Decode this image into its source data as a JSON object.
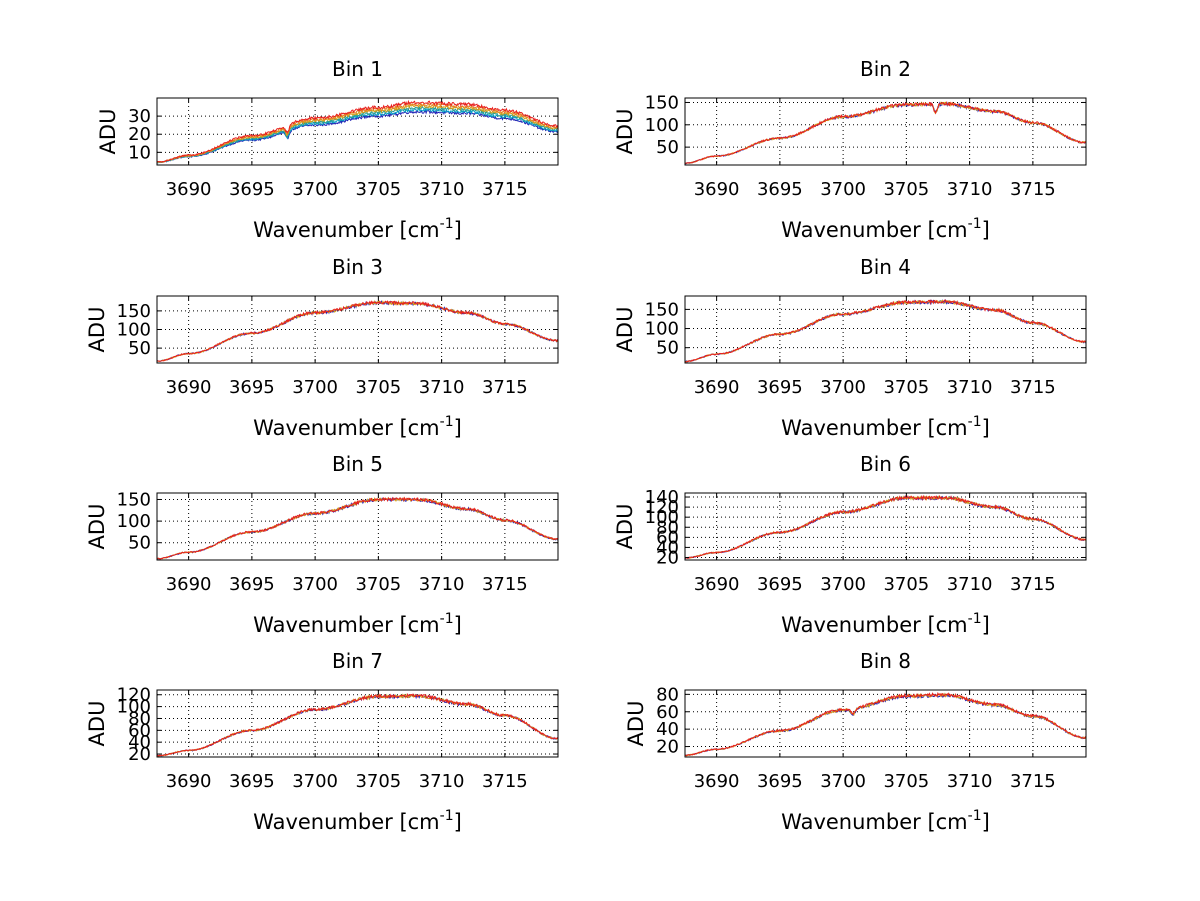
{
  "colors": {
    "background": "#ffffff",
    "axes": "#000000",
    "grid": "#000000",
    "series": [
      "#1f1fb4",
      "#00a0c8",
      "#2a9d8f",
      "#d4a017",
      "#e67e22",
      "#e8201e"
    ]
  },
  "chart_data": [
    {
      "type": "line",
      "title": "Bin 1",
      "xlabel": "Wavenumber [cm",
      "xlabel_sup": "-1",
      "xlabel_close": "]",
      "ylabel": "ADU",
      "xlim": [
        3687.5,
        3719.2
      ],
      "ylim": [
        3,
        40
      ],
      "xticks": [
        3690,
        3695,
        3700,
        3705,
        3710,
        3715
      ],
      "yticks": [
        10,
        20,
        30
      ],
      "grid": true,
      "profile": {
        "x": [
          3687.5,
          3690,
          3695,
          3700,
          3705,
          3708,
          3712,
          3715,
          3719.2
        ],
        "y": [
          4.5,
          8,
          18,
          27,
          32.5,
          35,
          34,
          31,
          23
        ]
      },
      "dip": {
        "x": 3697.8,
        "depth": 4
      },
      "series_offsets": [
        -2.5,
        -1.5,
        -0.5,
        0.5,
        1.5,
        2.5
      ]
    },
    {
      "type": "line",
      "title": "Bin 2",
      "xlabel": "Wavenumber [cm",
      "xlabel_sup": "-1",
      "xlabel_close": "]",
      "ylabel": "ADU",
      "xlim": [
        3687.5,
        3719.2
      ],
      "ylim": [
        10,
        160
      ],
      "xticks": [
        3690,
        3695,
        3700,
        3705,
        3710,
        3715
      ],
      "yticks": [
        50,
        100,
        150
      ],
      "grid": true,
      "profile": {
        "x": [
          3687.5,
          3690,
          3695,
          3700,
          3705,
          3708,
          3712,
          3715,
          3719.2
        ],
        "y": [
          14,
          30,
          70,
          118,
          145,
          147,
          130,
          105,
          60
        ]
      },
      "dip": {
        "x": 3707.3,
        "depth": 18
      },
      "series_offsets": [
        -1,
        0,
        1
      ]
    },
    {
      "type": "line",
      "title": "Bin 3",
      "xlabel": "Wavenumber [cm",
      "xlabel_sup": "-1",
      "xlabel_close": "]",
      "ylabel": "ADU",
      "xlim": [
        3687.5,
        3719.2
      ],
      "ylim": [
        10,
        190
      ],
      "xticks": [
        3690,
        3695,
        3700,
        3705,
        3710,
        3715
      ],
      "yticks": [
        50,
        100,
        150
      ],
      "grid": true,
      "profile": {
        "x": [
          3687.5,
          3690,
          3695,
          3700,
          3705,
          3708,
          3712,
          3715,
          3719.2
        ],
        "y": [
          15,
          35,
          90,
          145,
          172,
          170,
          145,
          115,
          70
        ]
      },
      "dip": null,
      "series_offsets": [
        -1,
        0,
        1
      ]
    },
    {
      "type": "line",
      "title": "Bin 4",
      "xlabel": "Wavenumber [cm",
      "xlabel_sup": "-1",
      "xlabel_close": "]",
      "ylabel": "ADU",
      "xlim": [
        3687.5,
        3719.2
      ],
      "ylim": [
        10,
        185
      ],
      "xticks": [
        3690,
        3695,
        3700,
        3705,
        3710,
        3715
      ],
      "yticks": [
        50,
        100,
        150
      ],
      "grid": true,
      "profile": {
        "x": [
          3687.5,
          3690,
          3695,
          3700,
          3705,
          3708,
          3712,
          3715,
          3719.2
        ],
        "y": [
          14,
          33,
          85,
          138,
          168,
          170,
          148,
          115,
          65
        ]
      },
      "dip": null,
      "series_offsets": [
        -1,
        0,
        1
      ]
    },
    {
      "type": "line",
      "title": "Bin 5",
      "xlabel": "Wavenumber [cm",
      "xlabel_sup": "-1",
      "xlabel_close": "]",
      "ylabel": "ADU",
      "xlim": [
        3687.5,
        3719.2
      ],
      "ylim": [
        10,
        165
      ],
      "xticks": [
        3690,
        3695,
        3700,
        3705,
        3710,
        3715
      ],
      "yticks": [
        50,
        100,
        150
      ],
      "grid": true,
      "profile": {
        "x": [
          3687.5,
          3690,
          3695,
          3700,
          3705,
          3708,
          3712,
          3715,
          3719.2
        ],
        "y": [
          13,
          28,
          75,
          118,
          150,
          150,
          128,
          102,
          58
        ]
      },
      "dip": null,
      "series_offsets": [
        -1,
        0,
        1
      ]
    },
    {
      "type": "line",
      "title": "Bin 6",
      "xlabel": "Wavenumber [cm",
      "xlabel_sup": "-1",
      "xlabel_close": "]",
      "ylabel": "ADU",
      "xlim": [
        3687.5,
        3719.2
      ],
      "ylim": [
        15,
        148
      ],
      "xticks": [
        3690,
        3695,
        3700,
        3705,
        3710,
        3715
      ],
      "yticks": [
        20,
        40,
        60,
        80,
        100,
        120,
        140
      ],
      "grid": true,
      "profile": {
        "x": [
          3687.5,
          3690,
          3695,
          3700,
          3705,
          3708,
          3712,
          3715,
          3719.2
        ],
        "y": [
          19,
          30,
          70,
          110,
          138,
          138,
          120,
          96,
          55
        ]
      },
      "dip": null,
      "series_offsets": [
        -1,
        0,
        1
      ]
    },
    {
      "type": "line",
      "title": "Bin 7",
      "xlabel": "Wavenumber [cm",
      "xlabel_sup": "-1",
      "xlabel_close": "]",
      "ylabel": "ADU",
      "xlim": [
        3687.5,
        3719.2
      ],
      "ylim": [
        15,
        128
      ],
      "xticks": [
        3690,
        3695,
        3700,
        3705,
        3710,
        3715
      ],
      "yticks": [
        20,
        40,
        60,
        80,
        100,
        120
      ],
      "grid": true,
      "profile": {
        "x": [
          3687.5,
          3690,
          3695,
          3700,
          3705,
          3708,
          3712,
          3715,
          3719.2
        ],
        "y": [
          17,
          26,
          60,
          95,
          117,
          118,
          104,
          85,
          46
        ]
      },
      "dip": null,
      "series_offsets": [
        -1,
        0,
        1
      ]
    },
    {
      "type": "line",
      "title": "Bin 8",
      "xlabel": "Wavenumber [cm",
      "xlabel_sup": "-1",
      "xlabel_close": "]",
      "ylabel": "ADU",
      "xlim": [
        3687.5,
        3719.2
      ],
      "ylim": [
        8,
        85
      ],
      "xticks": [
        3690,
        3695,
        3700,
        3705,
        3710,
        3715
      ],
      "yticks": [
        20,
        40,
        60,
        80
      ],
      "grid": true,
      "profile": {
        "x": [
          3687.5,
          3690,
          3695,
          3700,
          3705,
          3708,
          3712,
          3715,
          3719.2
        ],
        "y": [
          10,
          17,
          38,
          62,
          78,
          79,
          68,
          55,
          30
        ]
      },
      "dip": {
        "x": 3700.8,
        "depth": 6
      },
      "series_offsets": [
        -1,
        0,
        1
      ]
    }
  ]
}
